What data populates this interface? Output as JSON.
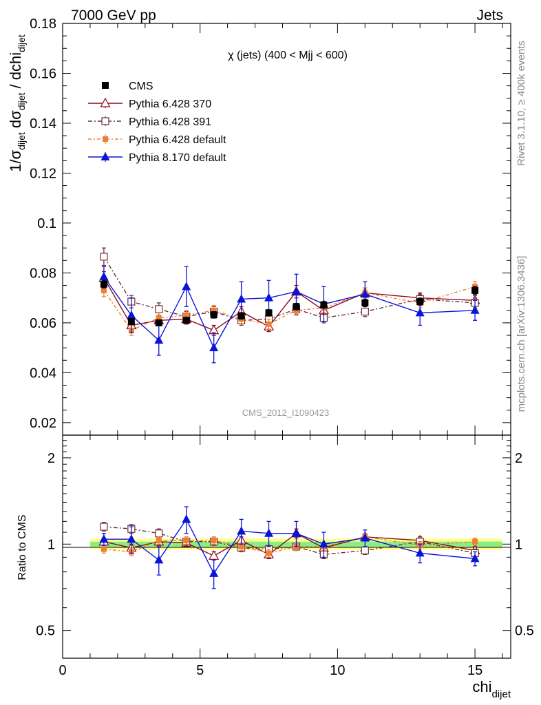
{
  "header": {
    "left": "7000 GeV pp",
    "right": "Jets"
  },
  "side_labels": {
    "rivet": "Rivet 3.1.10, ≥ 400k events",
    "mcplots": "mcplots.cern.ch [arXiv:1306.3436]"
  },
  "chart_data": [
    {
      "panel": "main",
      "type": "line",
      "title": "χ (jets) (400 < Mjj <  600)",
      "watermark": "CMS_2012_I1090423",
      "ylabel": "1/σdijet dσdijet / dchidijet",
      "xlim": [
        0,
        16.3
      ],
      "ylim": [
        0.015,
        0.18
      ],
      "yticks": [
        "0.02",
        "0.04",
        "0.06",
        "0.08",
        "0.1",
        "0.12",
        "0.14",
        "0.16",
        "0.18"
      ],
      "legend_position": "top-left",
      "x": [
        1.5,
        2.5,
        3.5,
        4.5,
        5.5,
        6.5,
        7.5,
        8.5,
        9.5,
        11,
        13,
        15
      ],
      "series": [
        {
          "name": "CMS",
          "color": "#000000",
          "values": [
            0.0755,
            0.0605,
            0.06,
            0.061,
            0.0632,
            0.0628,
            0.064,
            0.0665,
            0.0672,
            0.068,
            0.0685,
            0.073
          ],
          "errors": [
            0.0015,
            0.0012,
            0.0012,
            0.0012,
            0.0013,
            0.0013,
            0.0013,
            0.0013,
            0.0013,
            0.0014,
            0.0014,
            0.0015
          ]
        },
        {
          "name": "Pythia 6.428 370",
          "color": "#8b0a1a",
          "values": [
            0.078,
            0.059,
            0.061,
            0.0615,
            0.057,
            0.0645,
            0.0585,
            0.0725,
            0.065,
            0.072,
            0.07,
            0.069
          ],
          "errors": [
            0.0025,
            0.002,
            0.002,
            0.002,
            0.002,
            0.002,
            0.002,
            0.0025,
            0.002,
            0.002,
            0.002,
            0.002
          ]
        },
        {
          "name": "Pythia 6.428 391",
          "color": "#6b2f3a",
          "values": [
            0.0865,
            0.0685,
            0.0655,
            0.0625,
            0.0645,
            0.061,
            0.0615,
            0.0655,
            0.062,
            0.0645,
            0.0695,
            0.068
          ],
          "errors": [
            0.0035,
            0.0025,
            0.0025,
            0.002,
            0.002,
            0.002,
            0.002,
            0.002,
            0.002,
            0.002,
            0.002,
            0.002
          ]
        },
        {
          "name": "Pythia 6.428 default",
          "color": "#f07f33",
          "values": [
            0.073,
            0.057,
            0.062,
            0.063,
            0.065,
            0.0615,
            0.0595,
            0.065,
            0.066,
            0.072,
            0.068,
            0.0745
          ],
          "errors": [
            0.0025,
            0.002,
            0.002,
            0.002,
            0.002,
            0.002,
            0.002,
            0.002,
            0.002,
            0.002,
            0.002,
            0.002
          ]
        },
        {
          "name": "Pythia 8.170 default",
          "color": "#0a14d8",
          "values": [
            0.0785,
            0.063,
            0.053,
            0.0745,
            0.05,
            0.0695,
            0.07,
            0.0725,
            0.0675,
            0.0715,
            0.064,
            0.065
          ],
          "errors": [
            0.004,
            0.007,
            0.006,
            0.008,
            0.006,
            0.007,
            0.007,
            0.007,
            0.007,
            0.005,
            0.005,
            0.004
          ]
        }
      ]
    },
    {
      "panel": "ratio",
      "type": "line",
      "ylabel": "Ratio to CMS",
      "xlabel": "chidijet",
      "xlim": [
        0,
        16.3
      ],
      "ylim": [
        0.4,
        2.4
      ],
      "scale": "log",
      "yticks": [
        "0.5",
        "1",
        "2"
      ],
      "xticks": [
        "0",
        "5",
        "10",
        "15"
      ],
      "band_inner_color": "#88ee88",
      "band_outer_color": "#ffff88",
      "x": [
        1.5,
        2.5,
        3.5,
        4.5,
        5.5,
        6.5,
        7.5,
        8.5,
        9.5,
        11,
        13,
        15
      ],
      "series": [
        {
          "name": "Pythia 6.428 370",
          "values": [
            1.02,
            0.97,
            1.02,
            1.01,
            0.91,
            1.03,
            0.92,
            1.09,
            0.97,
            1.06,
            1.03,
            0.95
          ],
          "errors": [
            0.03,
            0.03,
            0.03,
            0.03,
            0.03,
            0.03,
            0.03,
            0.04,
            0.03,
            0.03,
            0.03,
            0.03
          ]
        },
        {
          "name": "Pythia 6.428 391",
          "values": [
            1.15,
            1.13,
            1.09,
            1.02,
            1.02,
            0.97,
            0.96,
            0.98,
            0.92,
            0.95,
            1.02,
            0.93
          ],
          "errors": [
            0.04,
            0.04,
            0.04,
            0.03,
            0.03,
            0.03,
            0.03,
            0.03,
            0.03,
            0.03,
            0.03,
            0.03
          ]
        },
        {
          "name": "Pythia 6.428 default",
          "values": [
            0.96,
            0.94,
            1.03,
            1.03,
            1.03,
            0.98,
            0.93,
            0.98,
            0.98,
            1.06,
            0.99,
            1.02
          ],
          "errors": [
            0.03,
            0.03,
            0.03,
            0.03,
            0.03,
            0.03,
            0.03,
            0.03,
            0.03,
            0.03,
            0.03,
            0.03
          ]
        },
        {
          "name": "Pythia 8.170 default",
          "values": [
            1.04,
            1.04,
            0.88,
            1.22,
            0.79,
            1.11,
            1.09,
            1.09,
            1.0,
            1.05,
            0.93,
            0.89
          ],
          "errors": [
            0.05,
            0.11,
            0.1,
            0.13,
            0.09,
            0.11,
            0.11,
            0.11,
            0.1,
            0.07,
            0.07,
            0.05
          ]
        }
      ]
    }
  ]
}
